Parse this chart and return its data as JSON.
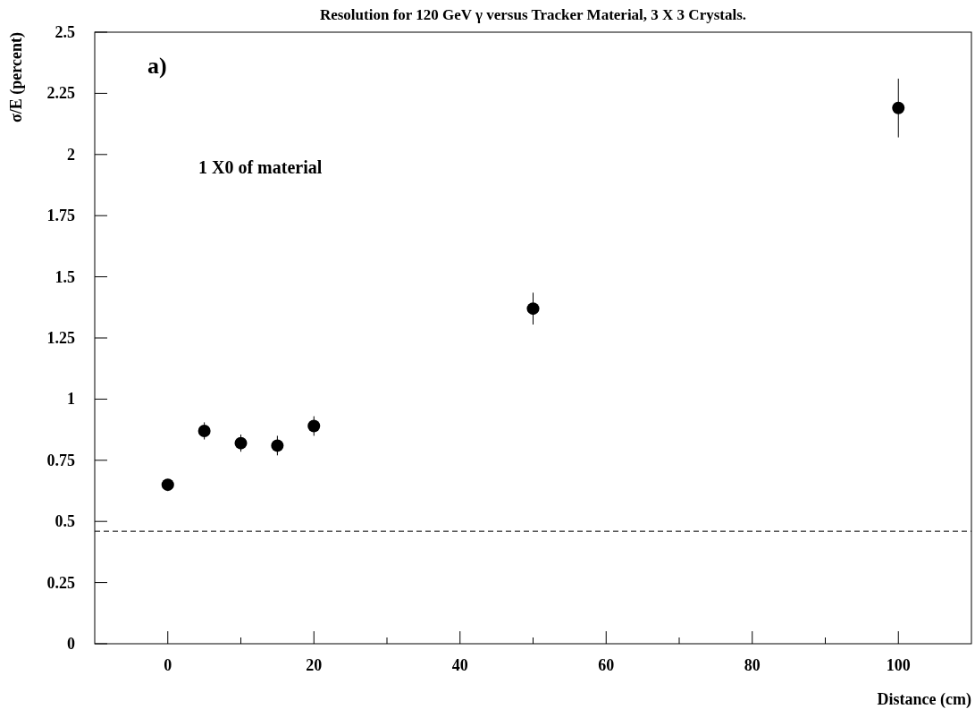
{
  "chart_data": {
    "type": "scatter",
    "title": "Resolution for 120 GeV γ versus Tracker Material, 3 X 3 Crystals.",
    "xlabel": "Distance (cm)",
    "ylabel": "σ/E (percent)",
    "annotations": [
      "a)",
      "1 X0 of material"
    ],
    "x": [
      0,
      5,
      10,
      15,
      20,
      50,
      100
    ],
    "series": [
      {
        "color": "#000000",
        "values": [
          0.65,
          0.87,
          0.82,
          0.81,
          0.89,
          1.37,
          2.19
        ],
        "errors": [
          0.02,
          0.035,
          0.035,
          0.04,
          0.04,
          0.065,
          0.12
        ]
      }
    ],
    "xlim": [
      -10,
      110
    ],
    "xticks": [
      0,
      {
        "value": 10,
        "label": null
      },
      20,
      {
        "value": 30,
        "label": null
      },
      40,
      {
        "value": 50,
        "label": null
      },
      60,
      {
        "value": 70,
        "label": null
      },
      80,
      {
        "value": 90,
        "label": null
      },
      100
    ],
    "ylim": [
      0,
      2.5
    ],
    "yticks": [
      0,
      0.25,
      0.5,
      0.75,
      1,
      1.25,
      1.5,
      1.75,
      2,
      2.25,
      2.5
    ],
    "ref_lines": [
      {
        "axis": "y",
        "value": 0.46,
        "line_style": "dashed",
        "color": "#000000"
      }
    ],
    "marker": "circle",
    "grid": false
  }
}
